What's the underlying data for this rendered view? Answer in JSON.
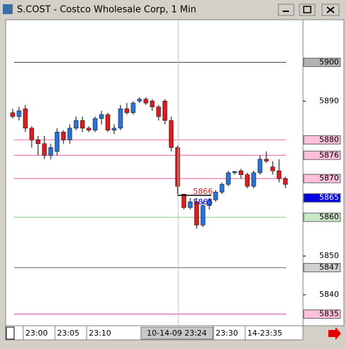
{
  "window": {
    "title": "S.COST - Costco Wholesale Corp, 1 Min"
  },
  "chart_data": {
    "type": "candlestick",
    "categories": [
      null,
      null,
      null,
      null,
      "23:00",
      null,
      null,
      null,
      null,
      "23:05",
      null,
      null,
      null,
      null,
      "23:10",
      null,
      null,
      null,
      null,
      null,
      null,
      null,
      null,
      null,
      null,
      null,
      null,
      null,
      null,
      null,
      null,
      null,
      null,
      null,
      "23:30",
      null,
      null,
      null,
      null,
      "14-23:35",
      null,
      null,
      null,
      null
    ],
    "open": [
      5887,
      5886,
      5888,
      5883,
      5880,
      5879,
      5876,
      5877,
      5882,
      5880,
      5883,
      5885,
      5883,
      5882.5,
      5885.5,
      5886.5,
      5882.5,
      5883,
      5888,
      5887,
      5890,
      5890.5,
      5890,
      5888.5,
      5890,
      5885,
      5878,
      5866,
      5862.5,
      5864,
      5858,
      5863,
      5864.5,
      5866.5,
      5868.5,
      5871.5,
      5872,
      5871,
      5868,
      5871.5,
      5875,
      5873,
      5872,
      5870
    ],
    "high": [
      5888,
      5888.5,
      5889,
      5883.5,
      5881,
      5881,
      5879,
      5883,
      5882.5,
      5884,
      5886,
      5886,
      5883.5,
      5886,
      5887.5,
      5887,
      5884,
      5889,
      5889.5,
      5890,
      5891,
      5891,
      5890.5,
      5889,
      5890.5,
      5886,
      5878.5,
      5866,
      5865,
      5865,
      5864,
      5865,
      5867,
      5869,
      5872,
      5872,
      5872.5,
      5871.5,
      5872,
      5876,
      5877,
      5874.5,
      5875,
      5870.5
    ],
    "low": [
      5885.5,
      5885,
      5882,
      5878,
      5876,
      5875,
      5875,
      5876,
      5879,
      5879,
      5882.5,
      5882,
      5882,
      5882,
      5884,
      5882,
      5881.5,
      5882.5,
      5886.5,
      5886.5,
      5889.5,
      5889,
      5887.5,
      5885,
      5884,
      5877,
      5866,
      5862,
      5862,
      5857,
      5857.5,
      5862,
      5864,
      5866,
      5868,
      5871,
      5870,
      5867.5,
      5867.5,
      5871,
      5874,
      5871,
      5869,
      5867.5
    ],
    "close": [
      5886,
      5887.5,
      5883,
      5880,
      5879,
      5876,
      5878,
      5882,
      5880,
      5883,
      5885,
      5883,
      5882.5,
      5885.5,
      5886.5,
      5882.5,
      5883,
      5888,
      5887,
      5889.5,
      5890.5,
      5889.5,
      5888.5,
      5886,
      5885,
      5878,
      5868,
      5862.5,
      5864,
      5858,
      5863,
      5864.5,
      5866.5,
      5868.5,
      5871.5,
      5871.8,
      5871,
      5868,
      5871.5,
      5875,
      5874.5,
      5872,
      5870,
      5868.5
    ],
    "up_color": "#2a74d6",
    "down_color": "#d82020",
    "ylim": [
      5832,
      5911
    ],
    "yticks": [
      5890,
      5850,
      5840
    ],
    "levels": [
      {
        "value": 5900,
        "line_color": "#555555",
        "box_color": "#b4b4b4",
        "text_color": "#000000"
      },
      {
        "value": 5880,
        "line_color": "#f07ab8",
        "box_color": "#ffc0dc",
        "text_color": "#000000"
      },
      {
        "value": 5876,
        "line_color": "#f07ab8",
        "box_color": "#ffc0dc",
        "text_color": "#000000"
      },
      {
        "value": 5870,
        "line_color": "#f07ab8",
        "box_color": "#ffc0dc",
        "text_color": "#000000"
      },
      {
        "value": 5865,
        "line_color": "#ffffff",
        "box_color": "#0000e0",
        "text_color": "#ffffff"
      },
      {
        "value": 5860,
        "line_color": "#9ac89a",
        "box_color": "#c8e8c8",
        "text_color": "#000000"
      },
      {
        "value": 5847,
        "line_color": "#888888",
        "box_color": "#d0d0d0",
        "text_color": "#000000"
      },
      {
        "value": 5835,
        "line_color": "#e060b0",
        "box_color": "#ffc0dc",
        "text_color": "#000000"
      }
    ],
    "crosshair": {
      "time_label": "10-14-09 23:24",
      "high_price": 5866,
      "low_price": 5865
    }
  }
}
